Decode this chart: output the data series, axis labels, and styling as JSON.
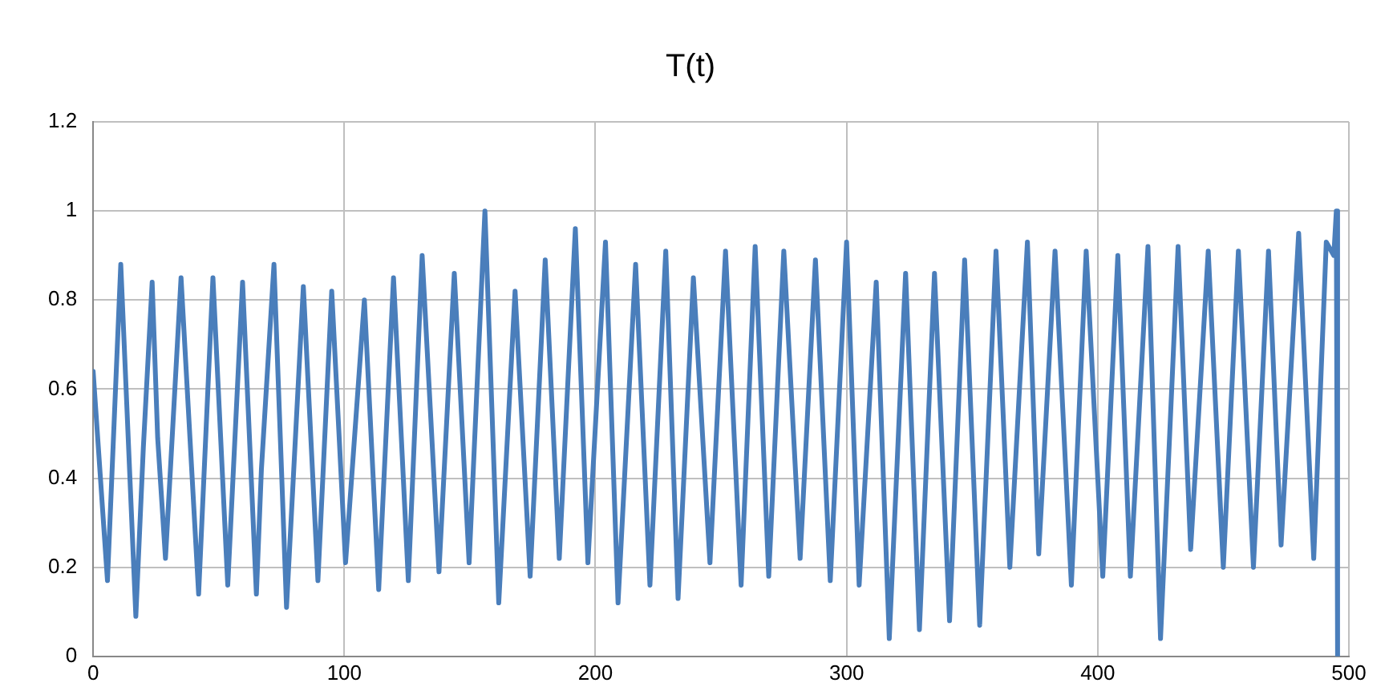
{
  "chart_data": {
    "type": "line",
    "title": "T(t)",
    "x": [
      0,
      5.7,
      11,
      17,
      20,
      23.5,
      25.7,
      28.8,
      35,
      42,
      47.7,
      53.6,
      59.5,
      65,
      67,
      72,
      77,
      83.7,
      89.5,
      95,
      100.5,
      108,
      113.7,
      119.6,
      125.5,
      131,
      137.7,
      143.8,
      149.7,
      156,
      161.5,
      168,
      174,
      180,
      185.6,
      192,
      197,
      204,
      209,
      216,
      221.7,
      228,
      232.9,
      239,
      245.6,
      251.8,
      258,
      263.6,
      269,
      275,
      281.5,
      287.6,
      293.5,
      300,
      305,
      311.8,
      317,
      323.5,
      329,
      335,
      341,
      347,
      353,
      359.5,
      365,
      372,
      376.5,
      383,
      389.5,
      395.4,
      402,
      408,
      413,
      420,
      425,
      432,
      437,
      444,
      450,
      456,
      462,
      468,
      473,
      480,
      486,
      491,
      494,
      495,
      495.5
    ],
    "series": [
      {
        "color": "#4a7ebb",
        "values": [
          0.64,
          0.17,
          0.88,
          0.09,
          0.47,
          0.84,
          0.49,
          0.22,
          0.85,
          0.14,
          0.85,
          0.16,
          0.84,
          0.14,
          0.42,
          0.88,
          0.11,
          0.83,
          0.17,
          0.82,
          0.21,
          0.8,
          0.15,
          0.85,
          0.17,
          0.9,
          0.19,
          0.86,
          0.21,
          1.0,
          0.12,
          0.82,
          0.18,
          0.89,
          0.22,
          0.96,
          0.21,
          0.93,
          0.12,
          0.88,
          0.16,
          0.91,
          0.13,
          0.85,
          0.21,
          0.91,
          0.16,
          0.92,
          0.18,
          0.91,
          0.22,
          0.89,
          0.17,
          0.93,
          0.16,
          0.84,
          0.04,
          0.86,
          0.06,
          0.86,
          0.08,
          0.89,
          0.07,
          0.91,
          0.2,
          0.93,
          0.23,
          0.91,
          0.16,
          0.91,
          0.18,
          0.9,
          0.18,
          0.92,
          0.04,
          0.92,
          0.24,
          0.91,
          0.2,
          0.91,
          0.2,
          0.91,
          0.25,
          0.95,
          0.22,
          0.93,
          0.9,
          1.0,
          0
        ]
      }
    ],
    "xlim": [
      0,
      500
    ],
    "xticks": [
      0,
      100,
      200,
      300,
      400,
      500
    ],
    "ylim": [
      0,
      1.2
    ],
    "yticks": [
      0,
      0.2,
      0.4,
      0.6,
      0.8,
      1,
      1.2
    ],
    "grid": true,
    "marker": "none",
    "line_style": "solid"
  }
}
